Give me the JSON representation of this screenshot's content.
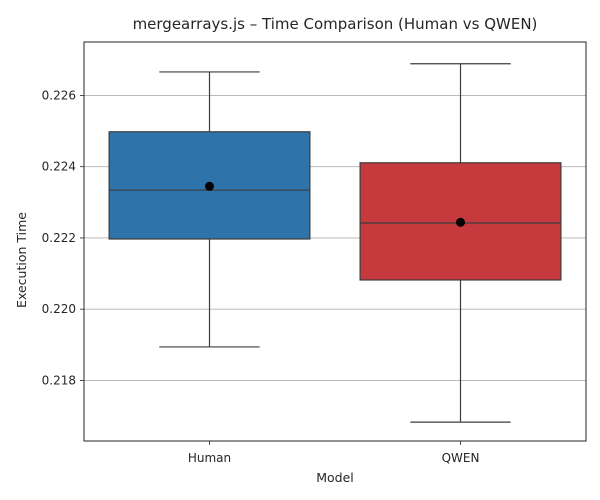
{
  "chart_data": {
    "type": "box",
    "title": "mergearrays.js – Time Comparison (Human vs QWEN)",
    "xlabel": "Model",
    "ylabel": "Execution Time",
    "ylim": [
      0.2163,
      0.2275
    ],
    "yticks": [
      "0.218",
      "0.220",
      "0.222",
      "0.224",
      "0.226"
    ],
    "grid": "horizontal",
    "categories": [
      "Human",
      "QWEN"
    ],
    "series": [
      {
        "category": "Human",
        "whisker_low": 0.21894,
        "q1": 0.22197,
        "median": 0.22334,
        "q3": 0.22498,
        "whisker_high": 0.22666,
        "mean": 0.22345,
        "color": "#2e73aa"
      },
      {
        "category": "QWEN",
        "whisker_low": 0.21683,
        "q1": 0.22082,
        "median": 0.22242,
        "q3": 0.22411,
        "whisker_high": 0.22689,
        "mean": 0.22244,
        "color": "#c6393d"
      }
    ]
  }
}
